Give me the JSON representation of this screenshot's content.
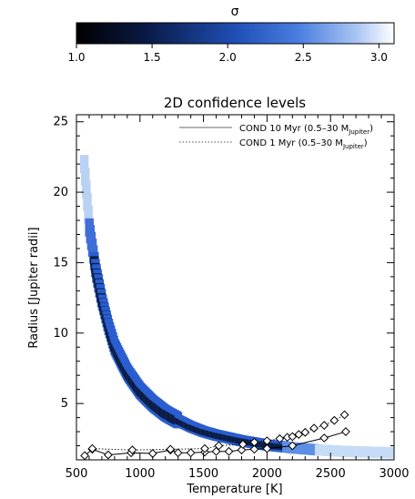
{
  "colorbar": {
    "symbol": "σ",
    "min": 1.0,
    "max": 3.1,
    "tick_labels": [
      "1.0",
      "1.5",
      "2.0",
      "2.5",
      "3.0"
    ],
    "tick_values": [
      1.0,
      1.5,
      2.0,
      2.5,
      3.0
    ],
    "colors": [
      "#000000",
      "#0a1a46",
      "#1f4fb5",
      "#4a7ee0",
      "#a7c4f3",
      "#ffffff"
    ]
  },
  "chart_data": {
    "type": "line",
    "title": "2D confidence levels",
    "xlabel": "Temperature [K]",
    "ylabel": "Radius [Jupiter radii]",
    "xlim": [
      500,
      3000
    ],
    "ylim": [
      1,
      25.5
    ],
    "x_ticks": [
      500,
      1000,
      1500,
      2000,
      2500,
      3000
    ],
    "x_tick_labels": [
      "500",
      "1000",
      "1500",
      "2000",
      "2500",
      "3000"
    ],
    "y_ticks": [
      5,
      10,
      15,
      20,
      25
    ],
    "y_tick_labels": [
      "5",
      "10",
      "15",
      "20",
      "25"
    ],
    "legend": {
      "placement": "top-right",
      "entries": [
        {
          "label": "COND 10 Myr (0.5–30 M",
          "sub": "Jupiter",
          "tail": ")",
          "style": "solid",
          "color": "#b4b4b4"
        },
        {
          "label": "COND 1 Myr (0.5–30 M",
          "sub": "Jupiter",
          "tail": ")",
          "style": "dotted",
          "color": "#555555"
        }
      ]
    },
    "confidence_band": {
      "description_values": "center radius vs temperature",
      "x": [
        560,
        600,
        650,
        700,
        750,
        800,
        900,
        1000,
        1100,
        1200,
        1300,
        1400,
        1500,
        1600,
        1700,
        1800,
        1900,
        2000,
        2100,
        2200,
        2400,
        2600,
        2800,
        3000
      ],
      "center": [
        22.0,
        17.5,
        14.5,
        12.3,
        10.5,
        9.0,
        7.2,
        5.9,
        5.0,
        4.3,
        3.8,
        3.35,
        3.0,
        2.75,
        2.55,
        2.35,
        2.2,
        2.05,
        1.95,
        1.85,
        1.7,
        1.6,
        1.55,
        1.5
      ]
    },
    "series": [
      {
        "name": "COND 10 Myr (0.5–30 MJupiter)",
        "style": "solid-black-with-diamonds",
        "x": [
          565,
          625,
          750,
          930,
          1100,
          1240,
          1300,
          1400,
          1510,
          1600,
          1700,
          1800,
          1900,
          2000,
          2200,
          2450,
          2620
        ],
        "y": [
          1.3,
          1.75,
          1.35,
          1.5,
          1.45,
          1.7,
          1.5,
          1.5,
          1.55,
          1.6,
          1.6,
          1.7,
          1.75,
          1.8,
          2.0,
          2.55,
          3.0
        ]
      },
      {
        "name": "COND 1 Myr (0.5–30 MJupiter)",
        "style": "dotted-black-with-diamonds",
        "x": [
          625,
          940,
          1240,
          1510,
          1620,
          1810,
          1900,
          2000,
          2100,
          2160,
          2200,
          2250,
          2300,
          2370,
          2450,
          2530,
          2610
        ],
        "y": [
          1.8,
          1.7,
          1.75,
          1.8,
          2.0,
          2.1,
          2.25,
          2.35,
          2.5,
          2.6,
          2.65,
          2.8,
          2.95,
          3.25,
          3.45,
          3.8,
          4.2
        ]
      }
    ]
  }
}
